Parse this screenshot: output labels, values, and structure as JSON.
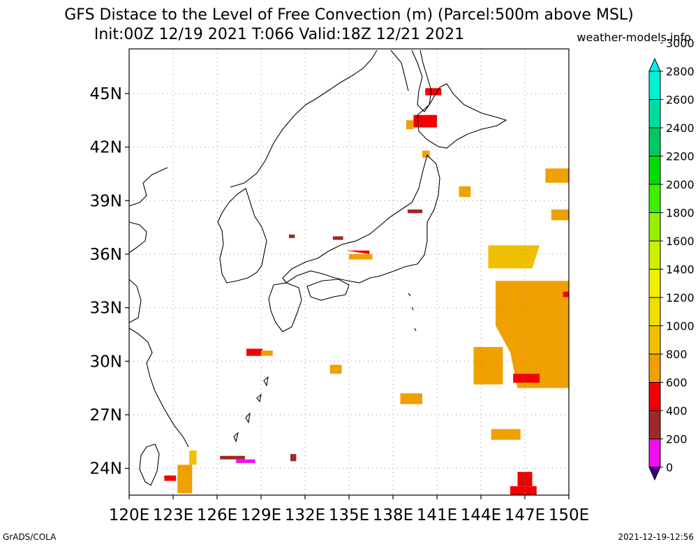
{
  "title": {
    "line1": "GFS Distace to the Level of Free Convection (m) (Parcel:500m above MSL)",
    "line2": "Init:00Z 12/19 2021 T:066 Valid:18Z 12/21 2021",
    "site": "weather-models.info"
  },
  "axes": {
    "lon_labels": [
      "120E",
      "123E",
      "126E",
      "129E",
      "132E",
      "135E",
      "138E",
      "141E",
      "144E",
      "147E",
      "150E"
    ],
    "lat_labels": [
      "24N",
      "27N",
      "30N",
      "33N",
      "36N",
      "39N",
      "42N",
      "45N"
    ],
    "lon_range": [
      120,
      150
    ],
    "lat_range": [
      22.5,
      47.5
    ],
    "grid": true
  },
  "colorbar": {
    "labels": [
      "0",
      "200",
      "400",
      "600",
      "800",
      "1000",
      "1200",
      "1400",
      "1600",
      "1800",
      "2000",
      "2200",
      "2400",
      "2600",
      "2800",
      "3000"
    ],
    "colors": [
      "#3c0082",
      "#f00ff0",
      "#a02828",
      "#f00000",
      "#f0a000",
      "#f0c000",
      "#f0dc00",
      "#f0f000",
      "#cdf000",
      "#96f000",
      "#3cf000",
      "#00dc00",
      "#00c864",
      "#00dca0",
      "#00f0d2",
      "#00f0f0"
    ]
  },
  "footer": {
    "left": "GrADS/COLA",
    "right": "2021-12-19-12:56"
  }
}
